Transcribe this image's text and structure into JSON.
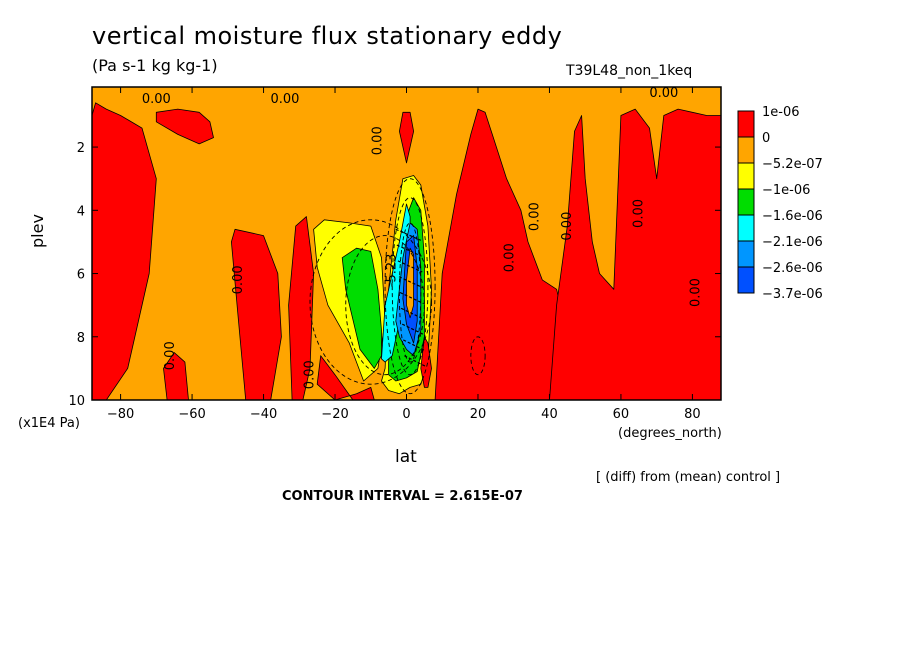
{
  "header": {
    "title": "vertical moisture flux stationary eddy",
    "units": "(Pa s-1 kg kg-1)",
    "run": "T39L48_non_1keq"
  },
  "footer": {
    "note": "[ (diff) from (mean) control ]",
    "contour_interval": "CONTOUR INTERVAL = 2.615E-07"
  },
  "chart_data": {
    "type": "heatmap",
    "title": "vertical moisture flux stationary eddy",
    "subtitle": "(Pa s-1 kg kg-1)",
    "xlabel": "lat",
    "x_unit": "(degrees_north)",
    "ylabel": "plev",
    "y_unit": "(x1E4 Pa)",
    "xlim": [
      -88,
      88
    ],
    "ylim": [
      0.1,
      10
    ],
    "y_inverted": true,
    "x_ticks": [
      -80,
      -60,
      -40,
      -20,
      0,
      20,
      40,
      60,
      80
    ],
    "y_ticks": [
      2,
      4,
      6,
      8,
      10
    ],
    "legend": {
      "position": "right",
      "labels": [
        "1e-06",
        "0",
        "-5.2e-07",
        "-1e-06",
        "-1.6e-06",
        "-2.1e-06",
        "-2.6e-06",
        "-3.7e-06"
      ],
      "colors": [
        "#ff0000",
        "#ffa500",
        "#ffff00",
        "#00dd00",
        "#00ffff",
        "#0096ff",
        "#0050ff"
      ]
    },
    "contour_labels": [
      "0.00",
      "0.00",
      "0.00",
      "0.00",
      "0.00",
      "0.00",
      "0.00",
      "0.00",
      "0.00",
      "0.00",
      "0.00",
      "0.00",
      "-5.23"
    ],
    "regions": [
      {
        "level": "1e-06",
        "x": [
          -88,
          -87,
          -84,
          -80,
          -74,
          -70,
          -72,
          -78,
          -84,
          -88
        ],
        "y": [
          1.0,
          0.6,
          0.8,
          1.0,
          1.4,
          3.0,
          6.0,
          9.0,
          10,
          10
        ]
      },
      {
        "level": "1e-06",
        "x": [
          -70,
          -64,
          -58,
          -55,
          -54,
          -58,
          -64,
          -70
        ],
        "y": [
          0.9,
          0.8,
          0.9,
          1.2,
          1.7,
          1.9,
          1.6,
          1.2
        ]
      },
      {
        "level": "1e-06",
        "x": [
          -67,
          -68,
          -65,
          -62,
          -61,
          -63
        ],
        "y": [
          10,
          9.0,
          8.5,
          8.8,
          10,
          10
        ]
      },
      {
        "level": "1e-06",
        "x": [
          -45,
          -47,
          -49,
          -48,
          -40,
          -36,
          -35,
          -38,
          -43
        ],
        "y": [
          10,
          7.5,
          5.0,
          4.6,
          4.8,
          6.0,
          8.0,
          10,
          10
        ]
      },
      {
        "level": "1e-06",
        "x": [
          -32,
          -33,
          -31,
          -28,
          -26,
          -27,
          -29
        ],
        "y": [
          10,
          7.0,
          4.5,
          4.2,
          6.0,
          9.0,
          10
        ]
      },
      {
        "level": "1e-06",
        "x": [
          -15,
          -20,
          -24,
          -25,
          -20,
          -14,
          -10,
          -9
        ],
        "y": [
          10,
          9.2,
          8.6,
          9.5,
          10,
          9.8,
          9.6,
          10
        ]
      },
      {
        "level": "1e-06",
        "x": [
          8,
          10,
          14,
          18,
          20,
          22,
          24,
          28,
          32,
          34,
          38,
          42,
          44,
          42,
          36,
          30,
          26
        ],
        "y": [
          10,
          6.0,
          3.5,
          1.6,
          0.8,
          0.9,
          1.6,
          3.0,
          4.0,
          5.0,
          6.2,
          6.5,
          7.5,
          10,
          10,
          10,
          10
        ]
      },
      {
        "level": "1e-06",
        "x": [
          40,
          42,
          45,
          47,
          49,
          50,
          52,
          54,
          58,
          60,
          64,
          68,
          70,
          72,
          76,
          80,
          84,
          88,
          88,
          58,
          52,
          48
        ],
        "y": [
          10,
          7.0,
          4.5,
          1.5,
          1.0,
          3.0,
          5.0,
          6.0,
          6.5,
          1.0,
          0.8,
          1.4,
          3.0,
          1.0,
          0.8,
          0.9,
          1.0,
          1.0,
          10,
          10,
          10,
          10
        ]
      },
      {
        "level": "-5.2e-07",
        "x": [
          -26,
          -23,
          -16,
          -10,
          -7,
          -6,
          -8,
          -12,
          -16,
          -22,
          -25
        ],
        "y": [
          4.6,
          4.3,
          4.4,
          4.5,
          5.5,
          7.5,
          9.0,
          9.4,
          8.2,
          7.0,
          5.8
        ]
      },
      {
        "level": "-1e-06",
        "x": [
          -18,
          -14,
          -10,
          -8,
          -7,
          -7,
          -9,
          -13,
          -17
        ],
        "y": [
          5.5,
          5.2,
          5.3,
          6.5,
          7.8,
          8.6,
          9.0,
          8.4,
          6.5
        ]
      },
      {
        "level": "-5.2e-07",
        "x": [
          -6,
          -5,
          -3,
          -1,
          2,
          4,
          6,
          7,
          6,
          4,
          1,
          -2,
          -5,
          -7
        ],
        "y": [
          9.0,
          6.5,
          4.3,
          3.0,
          2.9,
          3.2,
          4.5,
          6.5,
          8.8,
          9.5,
          9.6,
          9.8,
          9.7,
          9.4
        ]
      },
      {
        "level": "-1e-06",
        "x": [
          -5,
          -3,
          -1,
          2,
          4,
          5,
          5,
          3,
          0,
          -3,
          -5
        ],
        "y": [
          8.8,
          6.0,
          4.5,
          3.6,
          4.0,
          5.5,
          8.0,
          9.1,
          9.3,
          9.4,
          9.2
        ]
      },
      {
        "level": "-1.6e-06",
        "x": [
          -7,
          -6,
          -4,
          -2,
          0,
          1,
          1,
          -1,
          -4,
          -6
        ],
        "y": [
          8.7,
          7.0,
          6.0,
          5.0,
          3.8,
          4.2,
          5.5,
          7.0,
          8.6,
          8.8
        ]
      },
      {
        "level": "-2.1e-06",
        "x": [
          -3,
          -1,
          1,
          3,
          4,
          4,
          2,
          0,
          -2
        ],
        "y": [
          7.5,
          5.5,
          4.4,
          4.6,
          5.8,
          7.8,
          8.6,
          8.4,
          8.0
        ]
      },
      {
        "level": "-2.6e-06",
        "x": [
          -1,
          0,
          2,
          3,
          3,
          2,
          0
        ],
        "y": [
          6.8,
          5.0,
          4.8,
          5.8,
          7.5,
          8.2,
          7.6
        ]
      },
      {
        "level": "-3.7e-06",
        "x": [
          0,
          1,
          2,
          2,
          1,
          0
        ],
        "y": [
          6.2,
          5.2,
          5.4,
          7.0,
          7.4,
          7.0
        ]
      },
      {
        "level": "1e-06",
        "x": [
          4,
          5,
          6,
          7,
          6,
          5
        ],
        "y": [
          9.0,
          8.0,
          8.2,
          9.0,
          9.6,
          9.6
        ]
      },
      {
        "level": "1e-06",
        "x": [
          -2,
          -1,
          1,
          2,
          0
        ],
        "y": [
          1.5,
          0.9,
          0.9,
          1.5,
          2.5
        ]
      }
    ]
  }
}
